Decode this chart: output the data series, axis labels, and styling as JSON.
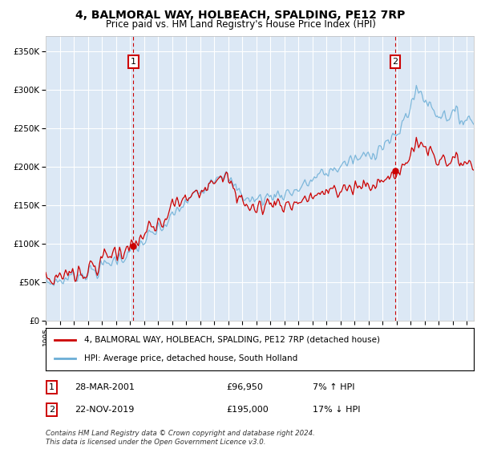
{
  "title": "4, BALMORAL WAY, HOLBEACH, SPALDING, PE12 7RP",
  "subtitle": "Price paid vs. HM Land Registry's House Price Index (HPI)",
  "legend_line1": "4, BALMORAL WAY, HOLBEACH, SPALDING, PE12 7RP (detached house)",
  "legend_line2": "HPI: Average price, detached house, South Holland",
  "annotation1_label": "1",
  "annotation1_date": "28-MAR-2001",
  "annotation1_price": "£96,950",
  "annotation1_hpi": "7% ↑ HPI",
  "annotation1_year": 2001.25,
  "annotation1_value": 96950,
  "annotation2_label": "2",
  "annotation2_date": "22-NOV-2019",
  "annotation2_price": "£195,000",
  "annotation2_hpi": "17% ↓ HPI",
  "annotation2_year": 2019.9,
  "annotation2_value": 195000,
  "footer": "Contains HM Land Registry data © Crown copyright and database right 2024.\nThis data is licensed under the Open Government Licence v3.0.",
  "ylim": [
    0,
    370000
  ],
  "xlim_start": 1995.0,
  "xlim_end": 2025.5,
  "hpi_color": "#6baed6",
  "price_color": "#cc0000",
  "bg_color": "#dce8f5",
  "annotation_box_color": "#cc0000",
  "vline_color": "#cc0000"
}
